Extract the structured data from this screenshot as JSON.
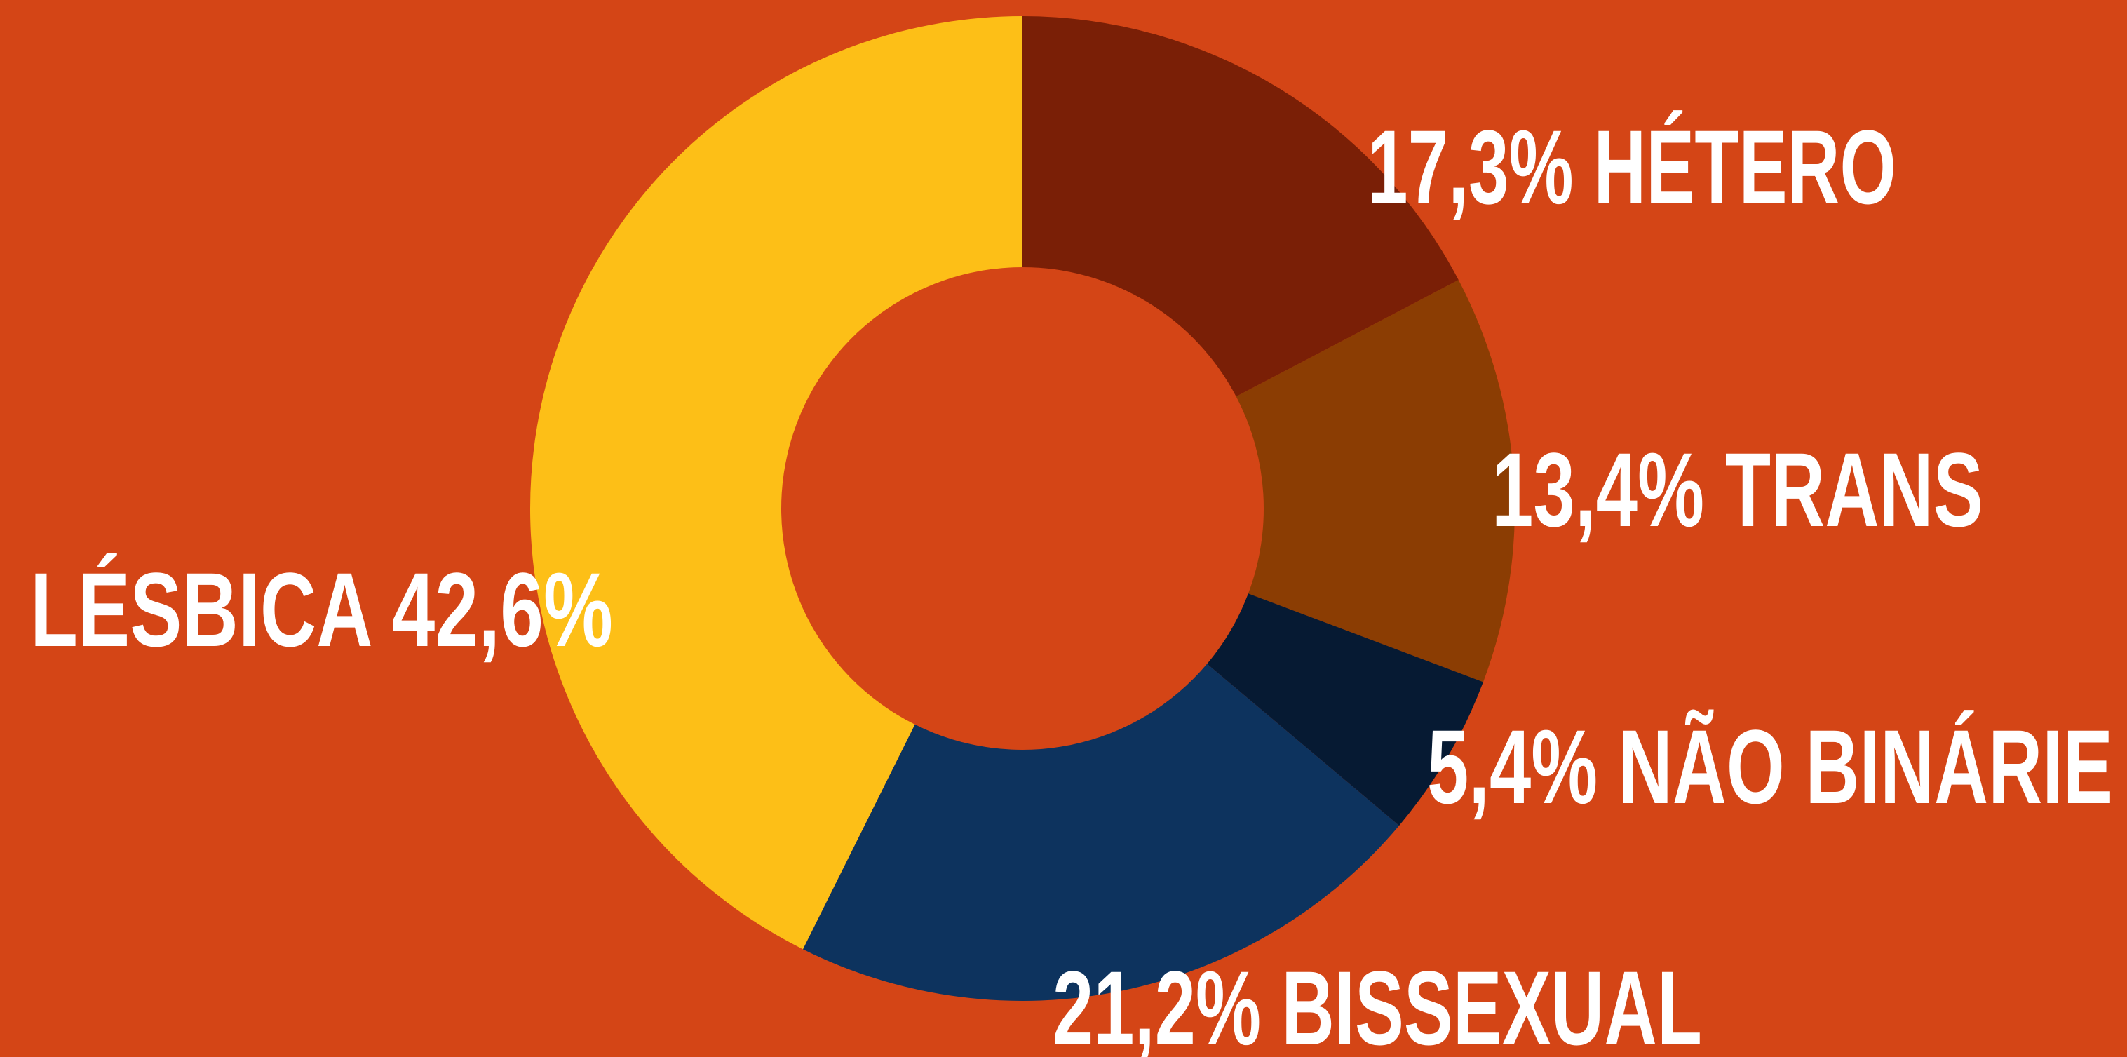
{
  "chart_data": {
    "type": "donut",
    "categories": [
      "HÉTERO",
      "TRANS",
      "NÃO BINÁRIE",
      "BISSEXUAL",
      "LÉSBICA"
    ],
    "values": [
      17.3,
      13.4,
      5.4,
      21.2,
      42.6
    ],
    "value_labels": [
      "17,3%",
      "13,4%",
      "5,4%",
      "21,2%",
      "42,6%"
    ],
    "colors": [
      "#7a1f06",
      "#8b3d03",
      "#061a33",
      "#0d335e",
      "#fdbf17"
    ]
  }
}
